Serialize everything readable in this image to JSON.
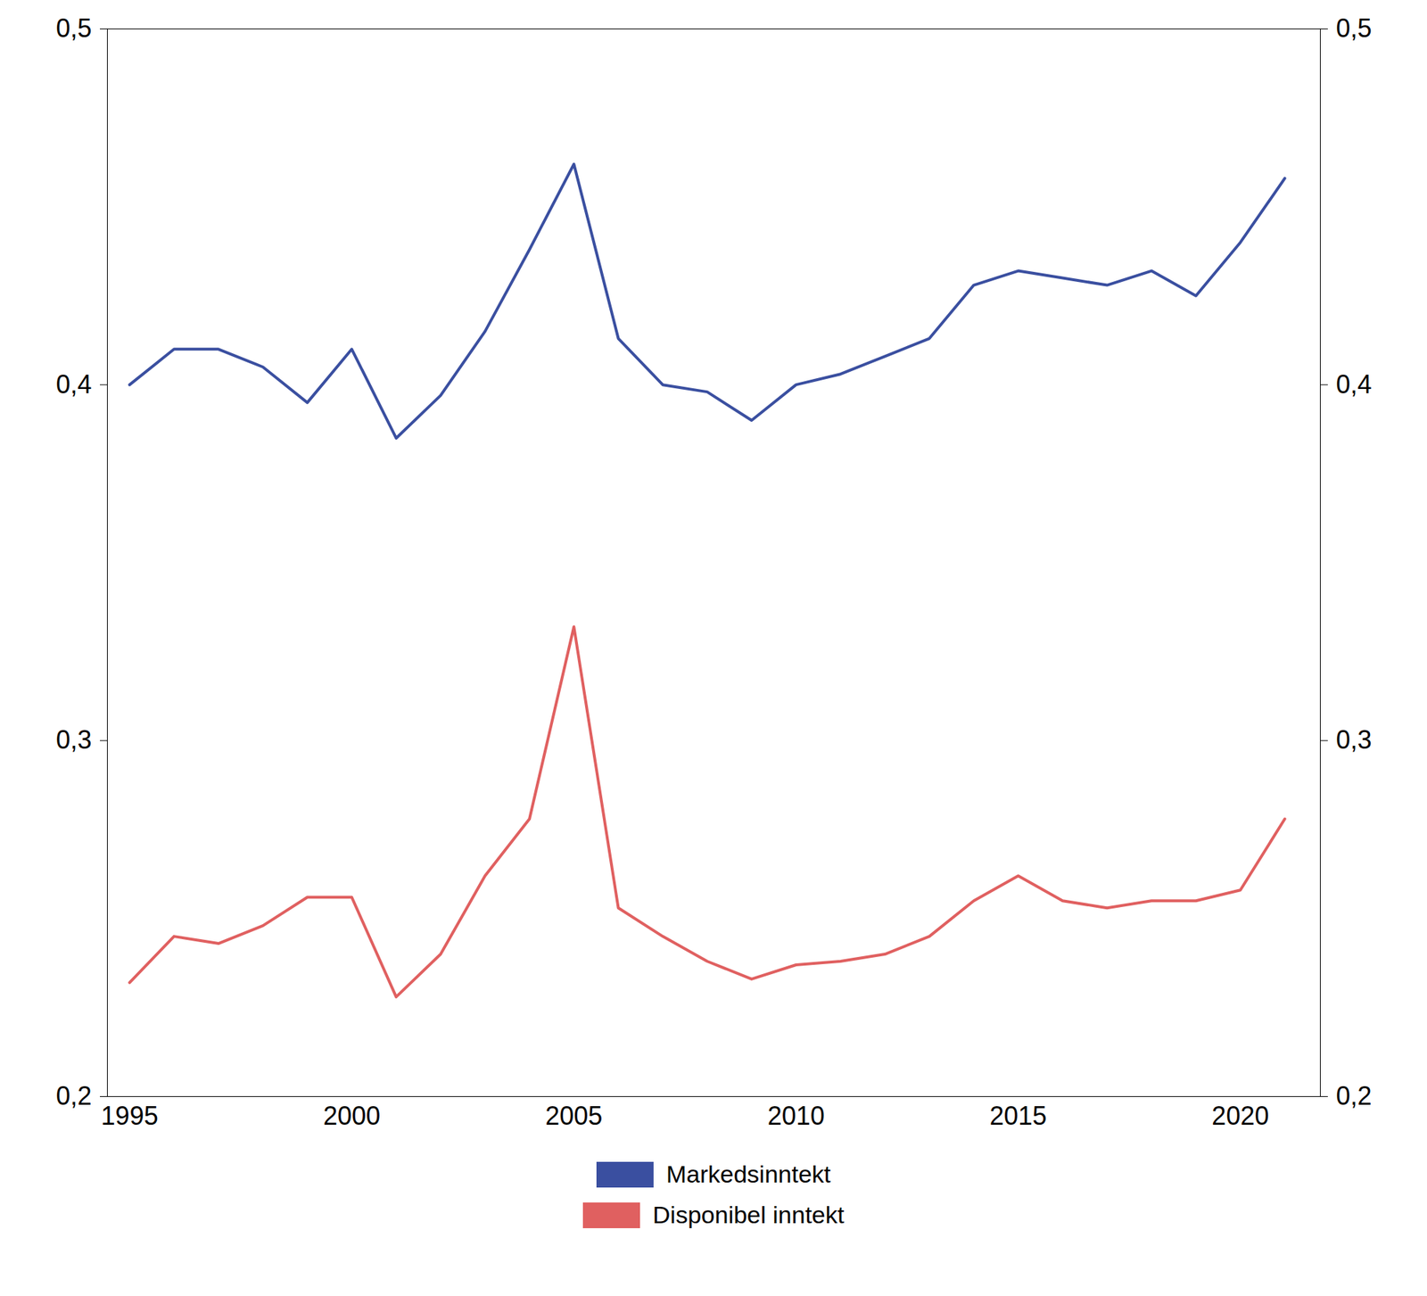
{
  "chart_data": {
    "type": "line",
    "x": [
      1995,
      1996,
      1997,
      1998,
      1999,
      2000,
      2001,
      2002,
      2003,
      2004,
      2005,
      2006,
      2007,
      2008,
      2009,
      2010,
      2011,
      2012,
      2013,
      2014,
      2015,
      2016,
      2017,
      2018,
      2019,
      2020,
      2021
    ],
    "series": [
      {
        "name": "Markedsinntekt",
        "color": "#3a4fa0",
        "values": [
          0.4,
          0.41,
          0.41,
          0.405,
          0.395,
          0.41,
          0.385,
          0.397,
          0.415,
          0.438,
          0.462,
          0.413,
          0.4,
          0.398,
          0.39,
          0.4,
          0.403,
          0.408,
          0.413,
          0.428,
          0.432,
          0.43,
          0.428,
          0.432,
          0.425,
          0.44,
          0.458
        ]
      },
      {
        "name": "Disponibel inntekt",
        "color": "#e06060",
        "values": [
          0.232,
          0.245,
          0.243,
          0.248,
          0.256,
          0.256,
          0.228,
          0.24,
          0.262,
          0.278,
          0.332,
          0.253,
          0.245,
          0.238,
          0.233,
          0.237,
          0.238,
          0.24,
          0.245,
          0.255,
          0.262,
          0.255,
          0.253,
          0.255,
          0.255,
          0.258,
          0.278
        ]
      }
    ],
    "xlim": [
      1994.5,
      2021.8
    ],
    "xticks": [
      1995,
      2000,
      2005,
      2010,
      2015,
      2020
    ],
    "ylim": [
      0.2,
      0.5
    ],
    "yticks": [
      {
        "value": 0.2,
        "label": "0,2"
      },
      {
        "value": 0.3,
        "label": "0,3"
      },
      {
        "value": 0.4,
        "label": "0,4"
      },
      {
        "value": 0.5,
        "label": "0,5"
      }
    ],
    "grid": false,
    "legend": "bottom"
  }
}
